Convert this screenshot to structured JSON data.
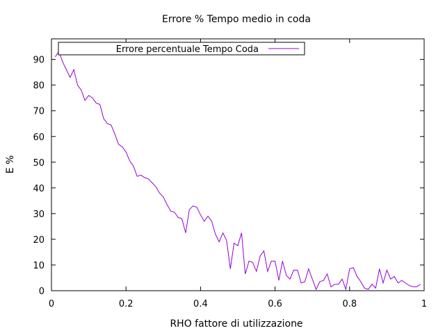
{
  "chart_data": {
    "type": "line",
    "title": "Errore % Tempo medio in coda",
    "xlabel": "RHO fattore di utilizzazione",
    "ylabel": "E %",
    "xlim": [
      0,
      1
    ],
    "ylim": [
      0,
      98
    ],
    "xticks": [
      0,
      0.2,
      0.4,
      0.6,
      0.8,
      1
    ],
    "xtick_labels": [
      "0",
      "0.2",
      "0.4",
      "0.6",
      "0.8",
      "1"
    ],
    "yticks": [
      0,
      10,
      20,
      30,
      40,
      50,
      60,
      70,
      80,
      90
    ],
    "ytick_labels": [
      "0",
      "10",
      "20",
      "30",
      "40",
      "50",
      "60",
      "70",
      "80",
      "90"
    ],
    "legend_position": "top-left",
    "grid": false,
    "series": [
      {
        "name": "Errore percentuale Tempo Coda",
        "color": "#9400d3",
        "x": [
          0.01,
          0.02,
          0.03,
          0.04,
          0.05,
          0.06,
          0.07,
          0.08,
          0.09,
          0.1,
          0.11,
          0.12,
          0.13,
          0.14,
          0.15,
          0.16,
          0.17,
          0.18,
          0.19,
          0.2,
          0.21,
          0.22,
          0.23,
          0.24,
          0.25,
          0.26,
          0.27,
          0.28,
          0.29,
          0.3,
          0.31,
          0.32,
          0.33,
          0.34,
          0.35,
          0.36,
          0.37,
          0.38,
          0.39,
          0.4,
          0.41,
          0.42,
          0.43,
          0.44,
          0.45,
          0.46,
          0.47,
          0.48,
          0.49,
          0.5,
          0.51,
          0.52,
          0.53,
          0.54,
          0.55,
          0.56,
          0.57,
          0.58,
          0.59,
          0.6,
          0.61,
          0.62,
          0.63,
          0.64,
          0.65,
          0.66,
          0.67,
          0.68,
          0.69,
          0.7,
          0.71,
          0.72,
          0.73,
          0.74,
          0.75,
          0.76,
          0.77,
          0.78,
          0.79,
          0.8,
          0.81,
          0.82,
          0.83,
          0.84,
          0.85,
          0.86,
          0.87,
          0.88,
          0.89,
          0.9,
          0.91,
          0.92,
          0.93,
          0.94,
          0.95,
          0.96,
          0.97,
          0.98,
          0.99
        ],
        "y": [
          91,
          93,
          89,
          86,
          83,
          86,
          80,
          78,
          74,
          76,
          75,
          73,
          72.5,
          67,
          65,
          64.5,
          61,
          57,
          56,
          54,
          50.5,
          48.5,
          44.5,
          45,
          44,
          43.5,
          42,
          40.5,
          38,
          36.5,
          33.5,
          31,
          30.5,
          28.5,
          28,
          22.5,
          31.5,
          33,
          32.5,
          29.5,
          27,
          29,
          27,
          22,
          19,
          22.5,
          19.5,
          8.5,
          18.5,
          17.5,
          22.5,
          6.5,
          11.5,
          11,
          7.5,
          13.5,
          15.5,
          7.5,
          11.5,
          11.5,
          4,
          11.5,
          6,
          4.5,
          8,
          8,
          3,
          3.5,
          8.5,
          4.5,
          0.5,
          3.5,
          4,
          6.5,
          1.5,
          2.5,
          2.5,
          4.5,
          0.5,
          8.5,
          9,
          5.5,
          3.5,
          1,
          0.5,
          2.5,
          1,
          8.5,
          3,
          8,
          4.5,
          5.5,
          3,
          4,
          3,
          2,
          1.5,
          1.5,
          2.5
        ]
      }
    ]
  }
}
